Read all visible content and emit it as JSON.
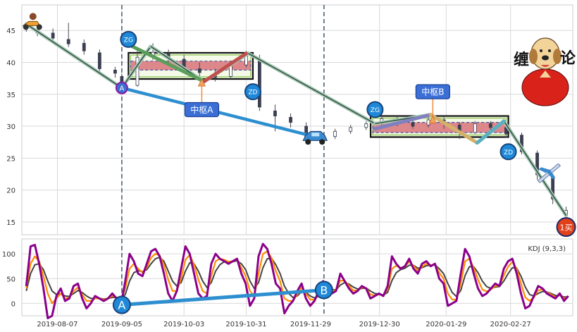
{
  "chart_data": [
    {
      "type": "candlestick",
      "title": "",
      "xlabel": "",
      "ylabel": "",
      "ylim": [
        13,
        49
      ],
      "yticks": [
        15,
        20,
        25,
        30,
        35,
        40,
        45
      ],
      "grid": true,
      "x_range": [
        "2019-07-22",
        "2020-03-26"
      ],
      "candles": [
        {
          "date": "2019-07-24",
          "o": 45.6,
          "c": 45.2,
          "h": 46.2,
          "l": 44.8
        },
        {
          "date": "2019-07-29",
          "o": 45.1,
          "c": 44.6,
          "h": 45.8,
          "l": 44.1
        },
        {
          "date": "2019-08-05",
          "o": 44.6,
          "c": 43.8,
          "h": 45.3,
          "l": 43.2
        },
        {
          "date": "2019-08-12",
          "o": 43.6,
          "c": 42.9,
          "h": 46.2,
          "l": 42.4
        },
        {
          "date": "2019-08-19",
          "o": 43.0,
          "c": 41.8,
          "h": 43.6,
          "l": 41.2
        },
        {
          "date": "2019-08-26",
          "o": 41.5,
          "c": 39.0,
          "h": 42.0,
          "l": 38.4
        },
        {
          "date": "2019-09-02",
          "o": 38.8,
          "c": 38.3,
          "h": 39.3,
          "l": 37.6
        },
        {
          "date": "2019-09-05",
          "o": 37.8,
          "c": 36.2,
          "h": 38.2,
          "l": 35.8
        },
        {
          "date": "2019-09-12",
          "o": 36.4,
          "c": 40.8,
          "h": 42.0,
          "l": 36.2
        },
        {
          "date": "2019-09-19",
          "o": 41.0,
          "c": 41.6,
          "h": 43.0,
          "l": 40.4
        },
        {
          "date": "2019-09-26",
          "o": 41.4,
          "c": 40.6,
          "h": 42.0,
          "l": 39.8
        },
        {
          "date": "2019-10-03",
          "o": 40.5,
          "c": 39.2,
          "h": 41.2,
          "l": 38.6
        },
        {
          "date": "2019-10-10",
          "o": 39.0,
          "c": 38.4,
          "h": 40.0,
          "l": 37.8
        },
        {
          "date": "2019-10-17",
          "o": 38.2,
          "c": 37.6,
          "h": 39.0,
          "l": 37.0
        },
        {
          "date": "2019-10-24",
          "o": 37.8,
          "c": 39.6,
          "h": 40.2,
          "l": 37.4
        },
        {
          "date": "2019-10-31",
          "o": 39.6,
          "c": 41.0,
          "h": 41.8,
          "l": 39.2
        },
        {
          "date": "2019-11-06",
          "o": 40.6,
          "c": 33.0,
          "h": 41.2,
          "l": 32.4
        },
        {
          "date": "2019-11-13",
          "o": 32.4,
          "c": 31.6,
          "h": 33.4,
          "l": 29.2
        },
        {
          "date": "2019-11-20",
          "o": 31.4,
          "c": 30.6,
          "h": 32.0,
          "l": 29.8
        },
        {
          "date": "2019-11-27",
          "o": 30.0,
          "c": 28.4,
          "h": 30.6,
          "l": 27.8
        },
        {
          "date": "2019-12-03",
          "o": 28.2,
          "c": 28.0,
          "h": 28.6,
          "l": 27.6
        },
        {
          "date": "2019-12-10",
          "o": 28.4,
          "c": 29.2,
          "h": 29.6,
          "l": 28.0
        },
        {
          "date": "2019-12-17",
          "o": 29.2,
          "c": 29.8,
          "h": 30.2,
          "l": 28.8
        },
        {
          "date": "2019-12-24",
          "o": 29.8,
          "c": 30.4,
          "h": 30.8,
          "l": 29.4
        },
        {
          "date": "2019-12-31",
          "o": 30.4,
          "c": 31.2,
          "h": 31.8,
          "l": 30.0
        },
        {
          "date": "2020-01-07",
          "o": 31.0,
          "c": 30.6,
          "h": 31.6,
          "l": 30.0
        },
        {
          "date": "2020-01-14",
          "o": 30.6,
          "c": 30.0,
          "h": 31.2,
          "l": 29.6
        },
        {
          "date": "2020-01-21",
          "o": 30.2,
          "c": 31.0,
          "h": 31.6,
          "l": 29.8
        },
        {
          "date": "2020-01-28",
          "o": 31.0,
          "c": 30.4,
          "h": 31.4,
          "l": 29.6
        },
        {
          "date": "2020-02-04",
          "o": 30.2,
          "c": 29.0,
          "h": 30.6,
          "l": 28.0
        },
        {
          "date": "2020-02-11",
          "o": 29.0,
          "c": 30.4,
          "h": 30.8,
          "l": 28.8
        },
        {
          "date": "2020-02-18",
          "o": 30.4,
          "c": 29.8,
          "h": 30.8,
          "l": 29.4
        },
        {
          "date": "2020-02-25",
          "o": 29.8,
          "c": 28.8,
          "h": 30.2,
          "l": 28.2
        },
        {
          "date": "2020-03-03",
          "o": 28.6,
          "c": 26.0,
          "h": 29.0,
          "l": 25.6
        },
        {
          "date": "2020-03-10",
          "o": 25.8,
          "c": 22.4,
          "h": 26.2,
          "l": 21.6
        },
        {
          "date": "2020-03-17",
          "o": 22.2,
          "c": 18.6,
          "h": 22.6,
          "l": 17.8
        },
        {
          "date": "2020-03-23",
          "o": 16.0,
          "c": 16.8,
          "h": 17.4,
          "l": 15.6
        }
      ],
      "stroke_lines": [
        {
          "from": [
            "2019-07-24",
            46.0
          ],
          "to": [
            "2019-09-05",
            36.0
          ],
          "color": "#2f4f3f"
        },
        {
          "from": [
            "2019-09-05",
            36.0
          ],
          "to": [
            "2019-09-18",
            42.5
          ],
          "color": "#2f4f3f"
        },
        {
          "from": [
            "2019-09-18",
            42.5
          ],
          "to": [
            "2019-10-12",
            37.0
          ],
          "color": "#2f4f3f"
        },
        {
          "from": [
            "2019-10-12",
            37.0
          ],
          "to": [
            "2019-11-01",
            41.4
          ],
          "color": "#2f4f3f"
        },
        {
          "from": [
            "2019-11-01",
            41.4
          ],
          "to": [
            "2019-12-28",
            30.4
          ],
          "color": "#2f4f3f"
        },
        {
          "from": [
            "2019-12-28",
            30.4
          ],
          "to": [
            "2020-01-22",
            31.8
          ],
          "color": "#2f4f3f"
        },
        {
          "from": [
            "2020-01-22",
            31.8
          ],
          "to": [
            "2020-02-12",
            27.4
          ],
          "color": "#2f4f3f"
        },
        {
          "from": [
            "2020-02-12",
            27.4
          ],
          "to": [
            "2020-02-24",
            30.8
          ],
          "color": "#2f4f3f"
        },
        {
          "from": [
            "2020-02-24",
            30.8
          ],
          "to": [
            "2020-03-23",
            16.0
          ],
          "color": "#2f4f3f"
        }
      ],
      "segment_lines": [
        {
          "from": [
            "2019-09-08",
            42.8
          ],
          "to": [
            "2019-10-12",
            37.0
          ],
          "color": "#5a9e5a"
        },
        {
          "from": [
            "2019-10-12",
            37.0
          ],
          "to": [
            "2019-10-31",
            41.4
          ],
          "color": "#c0504d"
        },
        {
          "from": [
            "2019-12-28",
            29.6
          ],
          "to": [
            "2020-01-22",
            31.8
          ],
          "color": "#8080c0"
        },
        {
          "from": [
            "2020-01-22",
            31.8
          ],
          "to": [
            "2020-02-12",
            27.4
          ],
          "color": "#d4b06a"
        },
        {
          "from": [
            "2020-02-12",
            27.4
          ],
          "to": [
            "2020-02-24",
            30.8
          ],
          "color": "#5ab0c0"
        }
      ],
      "centers": [
        {
          "label": "中枢A",
          "x0": "2019-09-08",
          "x1": "2019-11-03",
          "y0": 37.4,
          "y1": 41.5,
          "inner_y0": 38.8,
          "inner_y1": 40.2,
          "label_at": [
            "2019-10-11",
            32.6
          ],
          "arrow_to": [
            "2019-10-11",
            37.4
          ]
        },
        {
          "label": "中枢B",
          "x0": "2019-12-26",
          "x1": "2020-02-26",
          "y0": 28.3,
          "y1": 31.6,
          "inner_y0": 29.0,
          "inner_y1": 30.6,
          "label_at": [
            "2020-01-23",
            35.4
          ],
          "arrow_to": [
            "2020-01-23",
            31.6
          ]
        }
      ],
      "markers": [
        {
          "label": "A",
          "date": "2019-09-05",
          "value": 36.0,
          "style": "purple"
        },
        {
          "label": "ZG",
          "date": "2019-09-08",
          "value": 43.6,
          "style": "blue"
        },
        {
          "label": "ZD",
          "date": "2019-11-03",
          "value": 35.4,
          "style": "blue"
        },
        {
          "label": "ZG",
          "date": "2019-12-28",
          "value": 32.6,
          "style": "blue"
        },
        {
          "label": "ZD",
          "date": "2020-02-26",
          "value": 26.0,
          "style": "blue"
        },
        {
          "label": "1买",
          "date": "2020-03-23",
          "value": 14.2,
          "style": "red"
        }
      ],
      "divergence_line": {
        "from": [
          "2019-09-05",
          36.0
        ],
        "to": [
          "2019-12-05",
          28.0
        ],
        "color": "#2e8fd0"
      },
      "vlines": [
        "2019-09-05",
        "2019-12-05"
      ],
      "stickers": [
        {
          "name": "scooter",
          "date": "2019-07-27",
          "value": 46.2
        },
        {
          "name": "car",
          "date": "2019-12-01",
          "value": 28.2
        },
        {
          "name": "plane",
          "date": "2020-03-15",
          "value": 22.8
        }
      ],
      "logo_text": [
        "缠",
        "论"
      ]
    },
    {
      "type": "line",
      "title": "",
      "legend": "KDJ (9,3,3)",
      "ylim": [
        -25,
        130
      ],
      "yticks": [
        0,
        50,
        100
      ],
      "xticks": [
        "2019-08-07",
        "2019-09-05",
        "2019-10-03",
        "2019-10-31",
        "2019-11-29",
        "2019-12-30",
        "2020-01-29",
        "2020-02-27"
      ],
      "series": [
        {
          "name": "",
          "color": "#8b008b",
          "values": [
            35,
            115,
            118,
            80,
            30,
            -30,
            -25,
            15,
            30,
            5,
            10,
            35,
            40,
            10,
            -10,
            0,
            15,
            10,
            5,
            10,
            20,
            10,
            -5,
            45,
            100,
            85,
            60,
            55,
            80,
            105,
            110,
            95,
            60,
            20,
            5,
            25,
            70,
            115,
            100,
            60,
            20,
            10,
            15,
            80,
            100,
            90,
            85,
            80,
            85,
            90,
            60,
            40,
            -5,
            10,
            95,
            120,
            110,
            80,
            40,
            30,
            -20,
            -5,
            5,
            25,
            40,
            10,
            -5,
            5,
            25,
            45,
            35,
            20,
            25,
            60,
            45,
            30,
            20,
            25,
            35,
            30,
            10,
            15,
            20,
            15,
            35,
            95,
            80,
            70,
            75,
            90,
            70,
            60,
            80,
            85,
            75,
            80,
            50,
            40,
            -5,
            0,
            5,
            60,
            110,
            95,
            60,
            30,
            15,
            20,
            30,
            40,
            35,
            70,
            85,
            90,
            60,
            20,
            -10,
            -5,
            15,
            35,
            30,
            20,
            15,
            10,
            20,
            5,
            15
          ]
        },
        {
          "name": "",
          "color": "#ff8c00",
          "values": [
            30,
            80,
            95,
            85,
            55,
            20,
            0,
            10,
            20,
            10,
            12,
            25,
            32,
            18,
            5,
            5,
            10,
            10,
            8,
            10,
            15,
            12,
            5,
            30,
            70,
            80,
            70,
            62,
            72,
            92,
            100,
            97,
            78,
            48,
            25,
            25,
            50,
            88,
            98,
            78,
            48,
            25,
            20,
            55,
            85,
            90,
            88,
            84,
            85,
            88,
            72,
            55,
            25,
            15,
            60,
            100,
            105,
            92,
            65,
            45,
            10,
            5,
            5,
            18,
            32,
            20,
            8,
            7,
            18,
            35,
            35,
            26,
            26,
            46,
            46,
            36,
            26,
            26,
            32,
            31,
            18,
            16,
            18,
            16,
            28,
            70,
            76,
            72,
            74,
            84,
            76,
            66,
            74,
            80,
            77,
            79,
            62,
            50,
            20,
            8,
            7,
            40,
            85,
            90,
            72,
            48,
            28,
            24,
            28,
            35,
            35,
            56,
            74,
            84,
            70,
            40,
            12,
            5,
            12,
            26,
            28,
            22,
            18,
            13,
            17,
            10,
            13
          ]
        },
        {
          "name": "",
          "color": "#444444",
          "values": [
            25,
            60,
            78,
            80,
            68,
            45,
            25,
            18,
            20,
            15,
            14,
            20,
            26,
            22,
            15,
            10,
            10,
            10,
            9,
            10,
            12,
            12,
            9,
            18,
            45,
            62,
            66,
            64,
            68,
            80,
            90,
            93,
            85,
            65,
            45,
            35,
            42,
            65,
            82,
            80,
            65,
            45,
            32,
            42,
            65,
            78,
            84,
            84,
            84,
            86,
            80,
            68,
            45,
            30,
            42,
            72,
            90,
            91,
            78,
            60,
            35,
            20,
            12,
            15,
            24,
            22,
            15,
            11,
            14,
            25,
            30,
            28,
            27,
            37,
            42,
            39,
            33,
            29,
            30,
            31,
            25,
            20,
            19,
            17,
            22,
            46,
            62,
            68,
            71,
            77,
            77,
            71,
            72,
            76,
            77,
            78,
            70,
            60,
            40,
            22,
            14,
            26,
            56,
            74,
            74,
            62,
            45,
            34,
            30,
            33,
            34,
            45,
            60,
            72,
            71,
            55,
            33,
            18,
            15,
            20,
            24,
            23,
            20,
            16,
            16,
            13,
            13
          ]
        }
      ],
      "divergence_line": {
        "from": [
          "2019-09-05",
          -3
        ],
        "to": [
          "2019-12-05",
          27
        ],
        "color": "#2e8fd0"
      },
      "markers": [
        {
          "label": "A",
          "date": "2019-09-05",
          "value": -3
        },
        {
          "label": "B",
          "date": "2019-12-05",
          "value": 27
        }
      ]
    }
  ]
}
